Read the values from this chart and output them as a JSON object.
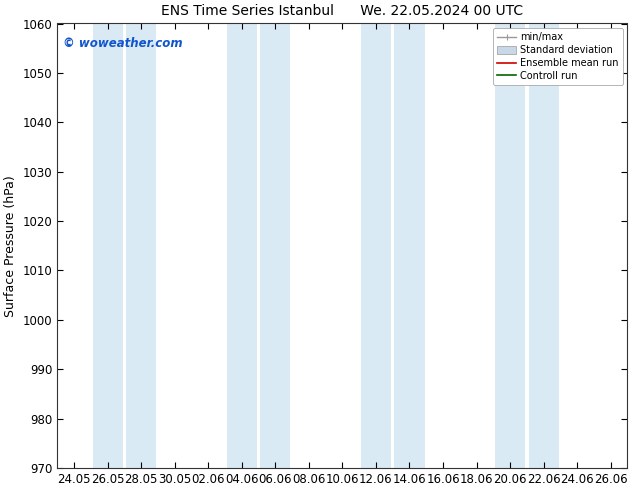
{
  "title_left": "ENS Time Series Istanbul",
  "title_right": "We. 22.05.2024 00 UTC",
  "ylabel": "Surface Pressure (hPa)",
  "ylim": [
    970,
    1060
  ],
  "yticks": [
    970,
    980,
    990,
    1000,
    1010,
    1020,
    1030,
    1040,
    1050,
    1060
  ],
  "xtick_labels": [
    "24.05",
    "26.05",
    "28.05",
    "30.05",
    "02.06",
    "04.06",
    "06.06",
    "08.06",
    "10.06",
    "12.06",
    "14.06",
    "16.06",
    "18.06",
    "20.06",
    "22.06",
    "24.06",
    "26.06"
  ],
  "copyright": "© woweather.com",
  "background_color": "#ffffff",
  "band_color": "#daeaf5",
  "band_indices": [
    1,
    2,
    5,
    6,
    9,
    10,
    13,
    14
  ],
  "legend_entries": [
    "min/max",
    "Standard deviation",
    "Ensemble mean run",
    "Controll run"
  ],
  "title_fontsize": 10,
  "axis_fontsize": 9,
  "tick_fontsize": 8.5
}
